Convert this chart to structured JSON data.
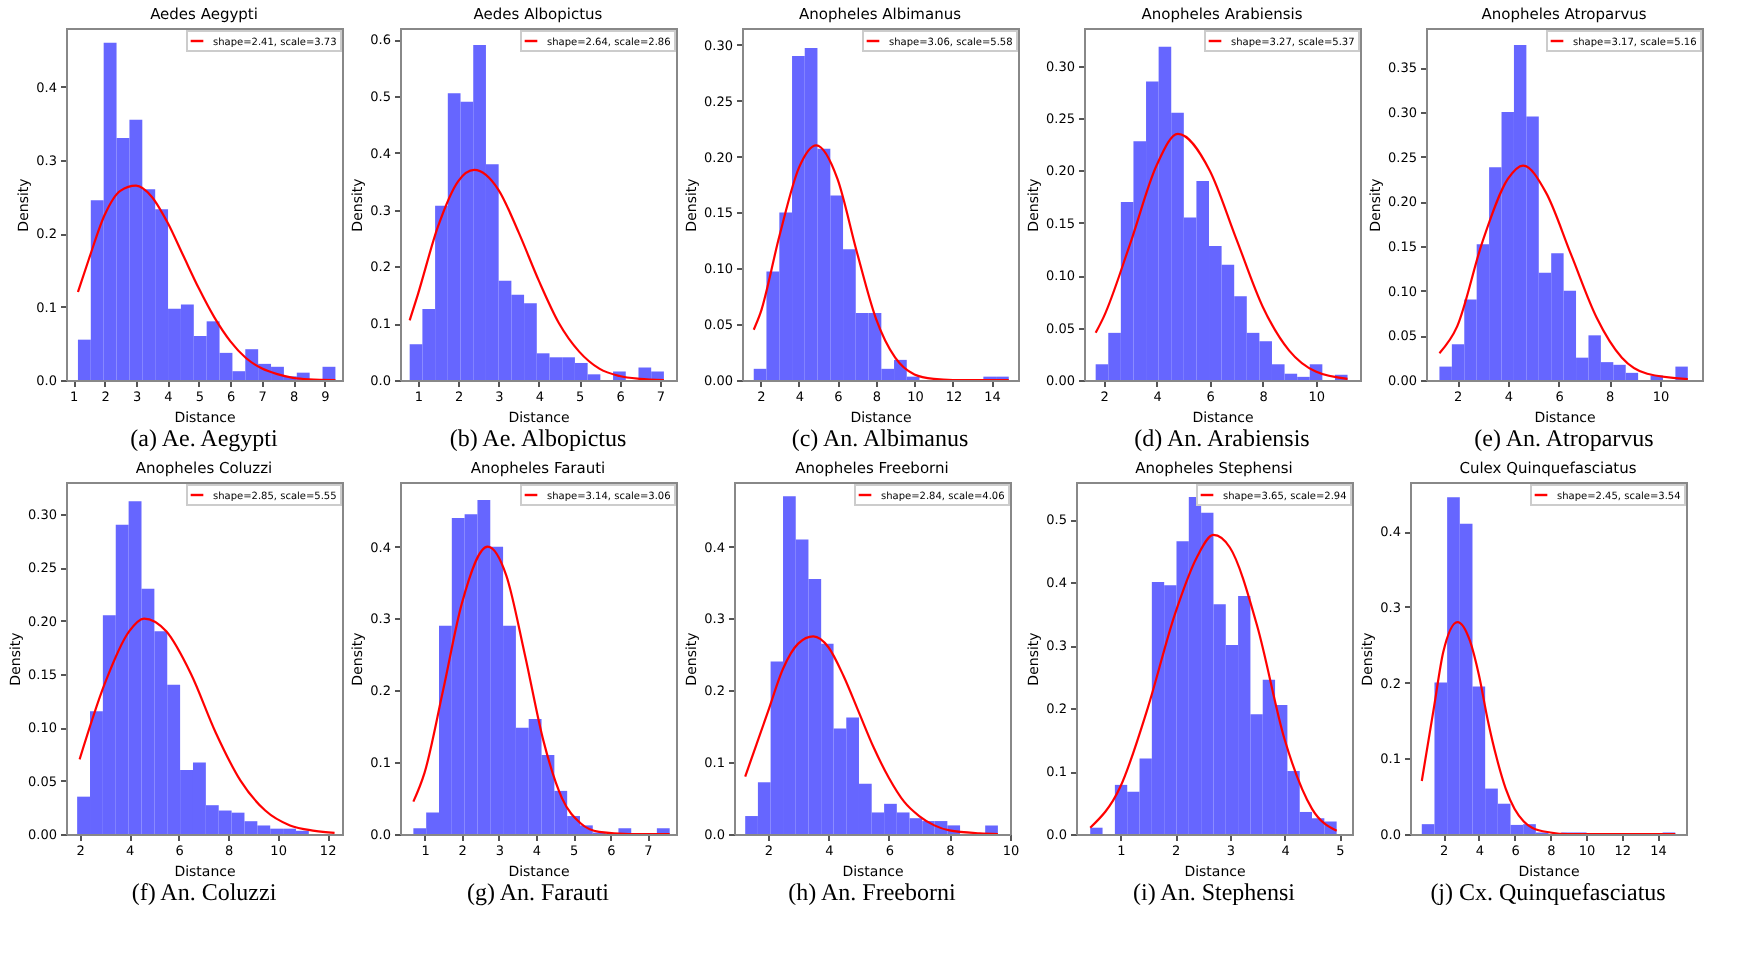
{
  "chart_data": [
    {
      "type": "histogram",
      "title": "Aedes Aegypti",
      "xlabel": "Distance",
      "ylabel": "Density",
      "annotations": [
        "(a) Ae. Aegypti"
      ],
      "color": "#6666ff",
      "legend": "top right",
      "bins": [
        1.15,
        1.56,
        1.97,
        2.38,
        2.79,
        3.2,
        3.61,
        4.02,
        4.43,
        4.84,
        5.25,
        5.66,
        6.07,
        6.48,
        6.89,
        7.3,
        7.71,
        8.12,
        8.53,
        8.94,
        9.35
      ],
      "values": [
        0.055,
        0.245,
        0.46,
        0.33,
        0.355,
        0.26,
        0.233,
        0.097,
        0.103,
        0.06,
        0.08,
        0.037,
        0.012,
        0.042,
        0.022,
        0.018,
        0.005,
        0.01,
        0,
        0.018
      ],
      "series": [
        {
          "type": "line",
          "name": "shape=2.41, scale=3.73",
          "color": "#ff0000",
          "x": [
            1.15,
            1.5,
            2,
            2.5,
            3,
            3.5,
            4,
            4.5,
            5,
            5.5,
            6,
            6.5,
            7,
            7.5,
            8,
            8.5,
            9.35
          ],
          "values": [
            0.12,
            0.165,
            0.225,
            0.258,
            0.265,
            0.25,
            0.215,
            0.17,
            0.125,
            0.085,
            0.053,
            0.03,
            0.016,
            0.008,
            0.003,
            0.001,
            0
          ]
        }
      ],
      "xlim": [
        0.77,
        9.56
      ],
      "xticks": [
        1,
        2,
        3,
        4,
        5,
        6,
        7,
        8,
        9
      ],
      "ylim": [
        0,
        0.48
      ],
      "yticks": [
        {
          "value": 0,
          "label": "0.0"
        },
        0.1,
        0.2,
        0.3,
        0.4
      ]
    },
    {
      "type": "histogram",
      "title": "Aedes Albopictus",
      "xlabel": "Distance",
      "ylabel": "Density",
      "annotations": [
        "(b) Ae. Albopictus"
      ],
      "color": "#6666ff",
      "legend": "top right",
      "bins": [
        0.8,
        1.115,
        1.43,
        1.745,
        2.06,
        2.375,
        2.69,
        3.005,
        3.32,
        3.635,
        3.95,
        4.265,
        4.58,
        4.895,
        5.21,
        5.525,
        5.84,
        6.155,
        6.47,
        6.785,
        7.1
      ],
      "values": [
        0.063,
        0.125,
        0.307,
        0.505,
        0.49,
        0.59,
        0.38,
        0.175,
        0.15,
        0.135,
        0.047,
        0.04,
        0.04,
        0.03,
        0.01,
        0,
        0.015,
        0,
        0.022,
        0.015
      ],
      "series": [
        {
          "type": "line",
          "name": "shape=2.64, scale=2.86",
          "color": "#ff0000",
          "x": [
            0.8,
            1,
            1.5,
            2,
            2.4,
            3,
            3.5,
            4,
            4.5,
            5,
            5.5,
            6,
            6.5,
            7.1
          ],
          "values": [
            0.105,
            0.15,
            0.27,
            0.35,
            0.37,
            0.335,
            0.26,
            0.175,
            0.1,
            0.05,
            0.02,
            0.007,
            0.002,
            0
          ]
        }
      ],
      "xlim": [
        0.56,
        7.4
      ],
      "xticks": [
        1,
        2,
        3,
        4,
        5,
        6,
        7
      ],
      "ylim": [
        0,
        0.62
      ],
      "yticks": [
        {
          "value": 0,
          "label": "0.0"
        },
        0.1,
        0.2,
        0.3,
        0.4,
        0.5,
        0.6
      ]
    },
    {
      "type": "histogram",
      "title": "Anopheles Albimanus",
      "xlabel": "Distance",
      "ylabel": "Density",
      "annotations": [
        "(c) An. Albimanus"
      ],
      "color": "#6666ff",
      "legend": "top right",
      "bins": [
        1.65,
        2.31,
        2.98,
        3.64,
        4.3,
        4.96,
        5.63,
        6.29,
        6.95,
        7.61,
        8.28,
        8.94,
        9.6,
        10.26,
        10.93,
        11.59,
        12.25,
        12.91,
        13.58,
        14.24,
        14.9
      ],
      "values": [
        0.01,
        0.097,
        0.15,
        0.29,
        0.297,
        0.207,
        0.165,
        0.117,
        0.06,
        0.06,
        0.01,
        0.018,
        0.003,
        null,
        null,
        0,
        0,
        0,
        0.003,
        0.003
      ],
      "series": [
        {
          "type": "line",
          "name": "shape=3.06, scale=5.58",
          "color": "#ff0000",
          "x": [
            1.65,
            2,
            3,
            4,
            4.9,
            6,
            7,
            8,
            9,
            10,
            11,
            12,
            14.9
          ],
          "values": [
            0.045,
            0.06,
            0.13,
            0.19,
            0.21,
            0.18,
            0.115,
            0.055,
            0.02,
            0.005,
            0.001,
            0,
            0
          ]
        }
      ],
      "xlim": [
        1.04,
        15.38
      ],
      "xticks": [
        2,
        4,
        6,
        8,
        10,
        12,
        14
      ],
      "ylim": [
        0,
        0.315
      ],
      "yticks": [
        {
          "value": 0,
          "label": "0.00"
        },
        {
          "value": 0.05,
          "label": "0.05"
        },
        {
          "value": 0.1,
          "label": "0.10"
        },
        {
          "value": 0.15,
          "label": "0.15"
        },
        {
          "value": 0.2,
          "label": "0.20"
        },
        {
          "value": 0.25,
          "label": "0.25"
        },
        {
          "value": 0.3,
          "label": "0.30"
        }
      ]
    },
    {
      "type": "histogram",
      "title": "Anopheles Arabiensis",
      "xlabel": "Distance",
      "ylabel": "Density",
      "annotations": [
        "(d) An. Arabiensis"
      ],
      "color": "#6666ff",
      "legend": "top right",
      "bins": [
        1.7,
        2.175,
        2.65,
        3.125,
        3.6,
        4.075,
        4.55,
        5.025,
        5.5,
        5.975,
        6.45,
        6.925,
        7.4,
        7.875,
        8.35,
        8.825,
        9.3,
        9.775,
        10.25,
        10.725,
        11.2
      ],
      "values": [
        0.015,
        0.045,
        0.17,
        0.228,
        0.285,
        0.318,
        0.255,
        0.155,
        0.19,
        0.128,
        0.11,
        0.08,
        0.045,
        0.037,
        0.015,
        0.006,
        0.003,
        0.015,
        0,
        0.005
      ],
      "series": [
        {
          "type": "line",
          "name": "shape=3.27, scale=5.37",
          "color": "#ff0000",
          "x": [
            1.7,
            2,
            3,
            4,
            4.8,
            6,
            7,
            8,
            9,
            10,
            11.2
          ],
          "values": [
            0.045,
            0.06,
            0.13,
            0.205,
            0.235,
            0.2,
            0.135,
            0.07,
            0.028,
            0.008,
            0.001
          ]
        }
      ],
      "xlim": [
        1.26,
        11.67
      ],
      "xticks": [
        2,
        4,
        6,
        8,
        10
      ],
      "ylim": [
        0,
        0.336
      ],
      "yticks": [
        {
          "value": 0,
          "label": "0.00"
        },
        {
          "value": 0.05,
          "label": "0.05"
        },
        {
          "value": 0.1,
          "label": "0.10"
        },
        {
          "value": 0.15,
          "label": "0.15"
        },
        {
          "value": 0.2,
          "label": "0.20"
        },
        {
          "value": 0.25,
          "label": "0.25"
        },
        {
          "value": 0.3,
          "label": "0.30"
        }
      ]
    },
    {
      "type": "histogram",
      "title": "Anopheles Atroparvus",
      "xlabel": "Distance",
      "ylabel": "Density",
      "annotations": [
        "(e) An. Atroparvus"
      ],
      "color": "#6666ff",
      "legend": "top right",
      "bins": [
        1.3,
        1.79,
        2.28,
        2.77,
        3.26,
        3.75,
        4.24,
        4.73,
        5.22,
        5.71,
        6.2,
        6.69,
        7.18,
        7.67,
        8.16,
        8.65,
        9.14,
        9.63,
        10.12,
        10.61,
        11.1
      ],
      "values": [
        0.015,
        0.04,
        0.09,
        0.152,
        0.238,
        0.3,
        0.375,
        0.295,
        0.12,
        0.142,
        0.1,
        0.025,
        0.05,
        0.02,
        0.017,
        0.008,
        0,
        0.005,
        0,
        0.015
      ],
      "series": [
        {
          "type": "line",
          "name": "shape=3.17, scale=5.16",
          "color": "#ff0000",
          "x": [
            1.3,
            2,
            3,
            4,
            4.6,
            5.5,
            6.5,
            7.5,
            8.5,
            9.5,
            11.1
          ],
          "values": [
            0.03,
            0.06,
            0.155,
            0.225,
            0.24,
            0.21,
            0.14,
            0.07,
            0.025,
            0.007,
            0.001
          ]
        }
      ],
      "xlim": [
        0.77,
        11.66
      ],
      "xticks": [
        2,
        4,
        6,
        8,
        10
      ],
      "ylim": [
        0,
        0.394
      ],
      "yticks": [
        {
          "value": 0,
          "label": "0.00"
        },
        {
          "value": 0.05,
          "label": "0.05"
        },
        {
          "value": 0.1,
          "label": "0.10"
        },
        {
          "value": 0.15,
          "label": "0.15"
        },
        {
          "value": 0.2,
          "label": "0.20"
        },
        {
          "value": 0.25,
          "label": "0.25"
        },
        {
          "value": 0.3,
          "label": "0.30"
        },
        {
          "value": 0.35,
          "label": "0.35"
        }
      ]
    },
    {
      "type": "histogram",
      "title": "Anopheles Coluzzi",
      "xlabel": "Distance",
      "ylabel": "Density",
      "annotations": [
        "(f) An. Coluzzi"
      ],
      "color": "#6666ff",
      "legend": "top right",
      "bins": [
        1.9,
        2.42,
        2.94,
        3.46,
        3.98,
        4.5,
        5.02,
        5.54,
        6.06,
        6.58,
        7.1,
        7.62,
        8.14,
        8.66,
        9.18,
        9.7,
        10.22,
        10.74,
        11.26,
        11.78,
        12.3
      ],
      "values": [
        0.035,
        0.115,
        0.205,
        0.29,
        0.312,
        0.23,
        0.19,
        0.14,
        0.06,
        0.067,
        0.027,
        0.022,
        0.02,
        0.012,
        0.008,
        0.005,
        0.005,
        0.003,
        0,
        null
      ],
      "series": [
        {
          "type": "line",
          "name": "shape=2.85, scale=5.55",
          "color": "#ff0000",
          "x": [
            2,
            3,
            4,
            4.6,
            5.5,
            6.5,
            7.5,
            8.5,
            9.5,
            10.5,
            11.5,
            12.3
          ],
          "values": [
            0.07,
            0.14,
            0.19,
            0.202,
            0.19,
            0.15,
            0.095,
            0.05,
            0.022,
            0.008,
            0.003,
            0.001
          ]
        }
      ],
      "xlim": [
        1.45,
        12.6
      ],
      "xticks": [
        2,
        4,
        6,
        8,
        10,
        12
      ],
      "ylim": [
        0,
        0.33
      ],
      "yticks": [
        {
          "value": 0,
          "label": "0.00"
        },
        {
          "value": 0.05,
          "label": "0.05"
        },
        {
          "value": 0.1,
          "label": "0.10"
        },
        {
          "value": 0.15,
          "label": "0.15"
        },
        {
          "value": 0.2,
          "label": "0.20"
        },
        {
          "value": 0.25,
          "label": "0.25"
        },
        {
          "value": 0.3,
          "label": "0.30"
        }
      ]
    },
    {
      "type": "histogram",
      "title": "Anopheles Farauti",
      "xlabel": "Distance",
      "ylabel": "Density",
      "annotations": [
        "(g) An. Farauti"
      ],
      "color": "#6666ff",
      "legend": "top right",
      "bins": [
        0.7,
        1.045,
        1.39,
        1.735,
        2.08,
        2.425,
        2.77,
        3.115,
        3.46,
        3.805,
        4.15,
        4.495,
        4.84,
        5.185,
        5.53,
        5.875,
        6.22,
        6.565,
        6.91,
        7.255,
        7.6
      ],
      "values": [
        0.008,
        0.03,
        0.29,
        0.44,
        0.445,
        0.465,
        0.4,
        0.29,
        0.148,
        0.16,
        0.11,
        0.06,
        0.025,
        0.012,
        0.002,
        0,
        0.008,
        0,
        0,
        0.008
      ],
      "series": [
        {
          "type": "line",
          "name": "shape=3.14, scale=3.06",
          "color": "#ff0000",
          "x": [
            0.7,
            1,
            1.5,
            2,
            2.7,
            3.2,
            3.7,
            4.2,
            4.7,
            5.2,
            5.7,
            6.5,
            7.6
          ],
          "values": [
            0.045,
            0.085,
            0.2,
            0.32,
            0.4,
            0.36,
            0.25,
            0.13,
            0.05,
            0.015,
            0.003,
            0,
            0
          ]
        }
      ],
      "xlim": [
        0.34,
        7.77
      ],
      "xticks": [
        1,
        2,
        3,
        4,
        5,
        6,
        7
      ],
      "ylim": [
        0,
        0.49
      ],
      "yticks": [
        {
          "value": 0,
          "label": "0.0"
        },
        0.1,
        0.2,
        0.3,
        0.4
      ]
    },
    {
      "type": "histogram",
      "title": "Anopheles Freeborni",
      "xlabel": "Distance",
      "ylabel": "Density",
      "annotations": [
        "(h) An. Freeborni"
      ],
      "color": "#6666ff",
      "legend": "top right",
      "bins": [
        1.25,
        1.67,
        2.09,
        2.5,
        2.92,
        3.34,
        3.76,
        4.17,
        4.59,
        5.01,
        5.43,
        5.84,
        6.26,
        6.68,
        7.1,
        7.51,
        7.93,
        8.35,
        8.77,
        9.18,
        9.6
      ],
      "values": [
        0.025,
        0.072,
        0.24,
        0.47,
        0.41,
        0.355,
        0.265,
        0.147,
        0.162,
        0.07,
        0.03,
        0.042,
        0.03,
        0.022,
        0.018,
        0.018,
        0.012,
        null,
        0,
        0.012
      ],
      "series": [
        {
          "type": "line",
          "name": "shape=2.84, scale=4.06",
          "color": "#ff0000",
          "x": [
            1.25,
            2,
            2.5,
            3,
            3.5,
            4,
            4.5,
            5,
            5.5,
            6,
            6.5,
            7,
            7.5,
            8,
            9,
            9.6
          ],
          "values": [
            0.08,
            0.17,
            0.23,
            0.265,
            0.275,
            0.26,
            0.22,
            0.17,
            0.12,
            0.078,
            0.045,
            0.025,
            0.012,
            0.005,
            0.001,
            0
          ]
        }
      ],
      "xlim": [
        0.88,
        10
      ],
      "xticks": [
        2,
        4,
        6,
        8,
        10
      ],
      "ylim": [
        0,
        0.49
      ],
      "yticks": [
        {
          "value": 0,
          "label": "0.0"
        },
        0.1,
        0.2,
        0.3,
        0.4
      ]
    },
    {
      "type": "histogram",
      "title": "Anopheles Stephensi",
      "xlabel": "Distance",
      "ylabel": "Density",
      "annotations": [
        "(i) An. Stephensi"
      ],
      "color": "#6666ff",
      "legend": "top right",
      "bins": [
        0.45,
        0.675,
        0.9,
        1.125,
        1.35,
        1.575,
        1.8,
        2.025,
        2.25,
        2.475,
        2.7,
        2.925,
        3.15,
        3.375,
        3.6,
        3.825,
        4.05,
        4.275,
        4.5,
        4.725,
        4.95
      ],
      "values": [
        0.01,
        0,
        0.078,
        0.067,
        0.12,
        0.4,
        0.395,
        0.465,
        0.535,
        0.51,
        0.365,
        0.3,
        0.378,
        0.19,
        0.245,
        0.205,
        0.1,
        0.035,
        0.025,
        0.02
      ],
      "series": [
        {
          "type": "line",
          "name": "shape=3.65, scale=2.94",
          "color": "#ff0000",
          "x": [
            0.45,
            1,
            1.5,
            2,
            2.4,
            2.7,
            3,
            3.5,
            4,
            4.5,
            4.95
          ],
          "values": [
            0.01,
            0.075,
            0.2,
            0.35,
            0.44,
            0.475,
            0.455,
            0.33,
            0.15,
            0.04,
            0.005
          ]
        }
      ],
      "xlim": [
        0.19,
        5.23
      ],
      "xticks": [
        1,
        2,
        3,
        4,
        5
      ],
      "ylim": [
        0,
        0.559
      ],
      "yticks": [
        {
          "value": 0,
          "label": "0.0"
        },
        0.1,
        0.2,
        0.3,
        0.4,
        0.5
      ]
    },
    {
      "type": "histogram",
      "title": "Culex Quinquefasciatus",
      "xlabel": "Distance",
      "ylabel": "Density",
      "annotations": [
        "(j) Cx. Quinquefasciatus"
      ],
      "color": "#6666ff",
      "legend": "top right",
      "bins": [
        0.8,
        1.51,
        2.22,
        2.93,
        3.64,
        4.35,
        5.06,
        5.77,
        6.48,
        7.19,
        7.9,
        8.61,
        9.32,
        10.03,
        10.74,
        11.45,
        12.16,
        12.87,
        13.58,
        14.29,
        15.0
      ],
      "values": [
        0.013,
        0.2,
        0.445,
        0.41,
        0.195,
        0.06,
        0.04,
        0.012,
        0.013,
        0.002,
        null,
        0.002,
        0.002,
        0,
        0,
        0,
        0,
        0,
        0,
        0.002
      ],
      "series": [
        {
          "type": "line",
          "name": "shape=2.45, scale=3.54",
          "color": "#ff0000",
          "x": [
            0.8,
            1.5,
            2,
            2.8,
            3.5,
            4,
            4.5,
            5,
            5.5,
            6,
            6.5,
            7,
            8,
            9,
            15
          ],
          "values": [
            0.07,
            0.17,
            0.24,
            0.28,
            0.255,
            0.21,
            0.15,
            0.1,
            0.06,
            0.033,
            0.017,
            0.008,
            0.002,
            0,
            0
          ]
        }
      ],
      "xlim": [
        0.14,
        15.6
      ],
      "xticks": [
        2,
        4,
        6,
        8,
        10,
        12,
        14
      ],
      "ylim": [
        0,
        0.465
      ],
      "yticks": [
        {
          "value": 0,
          "label": "0.0"
        },
        0.1,
        0.2,
        0.3,
        0.4
      ]
    }
  ]
}
